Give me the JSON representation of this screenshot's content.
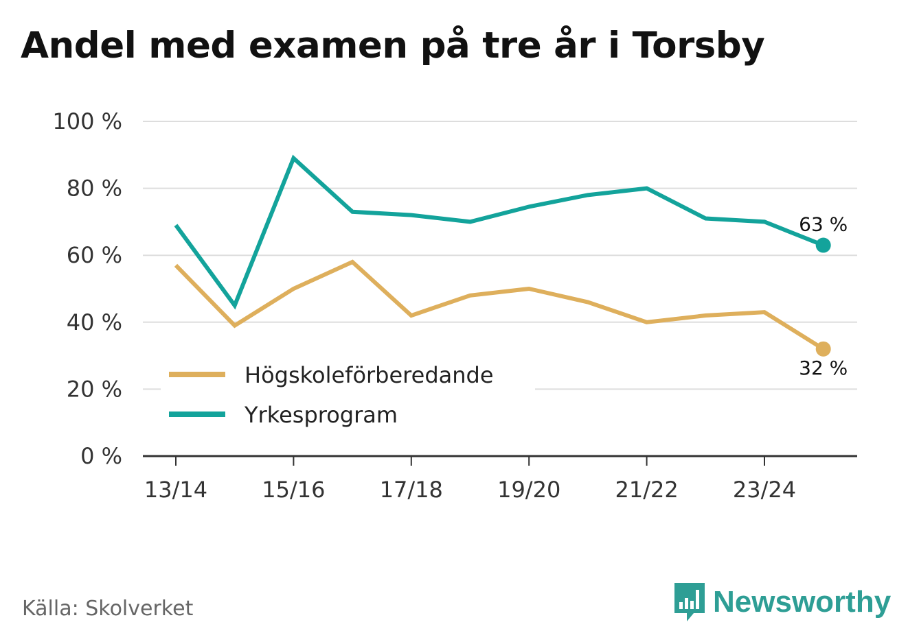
{
  "title": "Andel med examen på tre år i Torsby",
  "source": "Källa: Skolverket",
  "brand": {
    "name": "Newsworthy",
    "icon": "newsworthy-logo-icon",
    "color": "#2e9e95"
  },
  "chart_data": {
    "type": "line",
    "title": "Andel med examen på tre år i Torsby",
    "x": [
      "13/14",
      "14/15",
      "15/16",
      "16/17",
      "17/18",
      "18/19",
      "19/20",
      "20/21",
      "21/22",
      "22/23",
      "23/24",
      "24/25"
    ],
    "x_tick_labels": [
      "13/14",
      "15/16",
      "17/18",
      "19/20",
      "21/22",
      "23/24"
    ],
    "y_ticks": [
      0,
      20,
      40,
      60,
      80,
      100
    ],
    "y_tick_labels": [
      "0 %",
      "20 %",
      "40 %",
      "60 %",
      "80 %",
      "100 %"
    ],
    "ylim": [
      0,
      100
    ],
    "grid": true,
    "legend_position": "bottom-left",
    "series": [
      {
        "name": "Högskoleförberedande",
        "color": "#deaf5c",
        "values": [
          57,
          39,
          50,
          58,
          42,
          48,
          50,
          46,
          40,
          42,
          43,
          32
        ],
        "end_label": "32 %"
      },
      {
        "name": "Yrkesprogram",
        "color": "#13a39b",
        "values": [
          69,
          45,
          89,
          73,
          72,
          70,
          74.5,
          78,
          80,
          71,
          70,
          63
        ],
        "end_label": "63 %"
      }
    ]
  }
}
